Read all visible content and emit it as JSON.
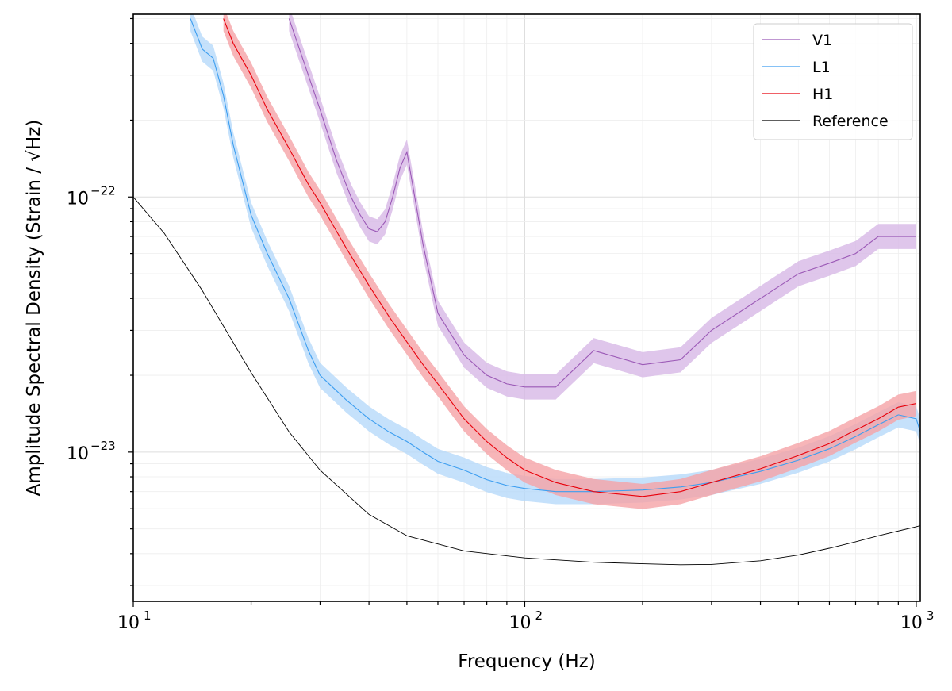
{
  "chart_data": {
    "type": "line",
    "title": "",
    "xlabel": "Frequency (Hz)",
    "ylabel": "Amplitude Spectral Density (Strain / √Hz)",
    "xscale": "log",
    "yscale": "log",
    "xlim": [
      10,
      1024
    ],
    "ylim": [
      2.6e-24,
      5.2e-22
    ],
    "grid": "on (major and minor, light)",
    "legend_position": "top-right",
    "x_ticks": [
      {
        "value": 10,
        "base": "10",
        "exp": "1"
      },
      {
        "value": 100,
        "base": "10",
        "exp": "2"
      },
      {
        "value": 1000,
        "base": "10",
        "exp": "3"
      }
    ],
    "y_ticks": [
      {
        "value": 1e-23,
        "base": "10",
        "exp": "−23"
      },
      {
        "value": 1e-22,
        "base": "10",
        "exp": "−22"
      }
    ],
    "series": [
      {
        "name": "V1",
        "color": "#9b59b6",
        "band_color": "#d7b8e6",
        "x": [
          25,
          28,
          30,
          33,
          36,
          38,
          40,
          42,
          44,
          46,
          48,
          50,
          55,
          60,
          70,
          80,
          90,
          100,
          120,
          150,
          200,
          250,
          300,
          400,
          500,
          600,
          700,
          800,
          900,
          1000
        ],
        "y": [
          5e-22,
          3e-22,
          2.2e-22,
          1.4e-22,
          1e-22,
          8.5e-23,
          7.5e-23,
          7.3e-23,
          8e-23,
          1e-22,
          1.3e-22,
          1.5e-22,
          6.5e-23,
          3.5e-23,
          2.4e-23,
          2e-23,
          1.85e-23,
          1.8e-23,
          1.8e-23,
          2.5e-23,
          2.2e-23,
          2.3e-23,
          3e-23,
          4e-23,
          5e-23,
          5.5e-23,
          6e-23,
          7e-23,
          7e-23,
          7e-23
        ]
      },
      {
        "name": "L1",
        "color": "#3d9ef0",
        "band_color": "#b7dafa",
        "x": [
          14,
          15,
          16,
          17,
          18,
          20,
          22,
          25,
          28,
          30,
          35,
          40,
          45,
          50,
          55,
          60,
          70,
          80,
          90,
          100,
          120,
          150,
          200,
          250,
          300,
          400,
          500,
          600,
          700,
          800,
          900,
          1000,
          1024
        ],
        "y": [
          5e-22,
          3.8e-22,
          3.5e-22,
          2.5e-22,
          1.6e-22,
          8.5e-23,
          6e-23,
          4e-23,
          2.5e-23,
          2e-23,
          1.6e-23,
          1.35e-23,
          1.2e-23,
          1.1e-23,
          1e-23,
          9.2e-24,
          8.5e-24,
          7.8e-24,
          7.4e-24,
          7.2e-24,
          7e-24,
          7e-24,
          7.1e-24,
          7.3e-24,
          7.6e-24,
          8.4e-24,
          9.3e-24,
          1.03e-23,
          1.15e-23,
          1.28e-23,
          1.4e-23,
          1.35e-23,
          1.2e-23
        ]
      },
      {
        "name": "H1",
        "color": "#e8000b",
        "band_color": "#f5a3a6",
        "x": [
          17,
          18,
          20,
          22,
          25,
          28,
          30,
          35,
          40,
          45,
          50,
          55,
          60,
          70,
          80,
          90,
          100,
          120,
          150,
          200,
          250,
          300,
          400,
          500,
          600,
          700,
          800,
          900,
          1000
        ],
        "y": [
          5e-22,
          4e-22,
          3e-22,
          2.2e-22,
          1.55e-22,
          1.12e-22,
          9.5e-23,
          6.3e-23,
          4.5e-23,
          3.4e-23,
          2.7e-23,
          2.2e-23,
          1.85e-23,
          1.35e-23,
          1.1e-23,
          9.5e-24,
          8.5e-24,
          7.6e-24,
          7e-24,
          6.7e-24,
          7e-24,
          7.6e-24,
          8.6e-24,
          9.7e-24,
          1.08e-23,
          1.22e-23,
          1.35e-23,
          1.5e-23,
          1.55e-23
        ]
      },
      {
        "name": "Reference",
        "color": "#000000",
        "x": [
          10,
          12,
          15,
          20,
          25,
          30,
          40,
          50,
          70,
          100,
          150,
          200,
          250,
          300,
          400,
          500,
          600,
          700,
          800,
          1000,
          1024
        ],
        "y": [
          1e-22,
          7.2e-23,
          4.3e-23,
          2.05e-23,
          1.2e-23,
          8.5e-24,
          5.7e-24,
          4.7e-24,
          4.1e-24,
          3.85e-24,
          3.7e-24,
          3.65e-24,
          3.62e-24,
          3.63e-24,
          3.75e-24,
          3.95e-24,
          4.2e-24,
          4.45e-24,
          4.7e-24,
          5.1e-24,
          5.15e-24
        ]
      }
    ]
  }
}
